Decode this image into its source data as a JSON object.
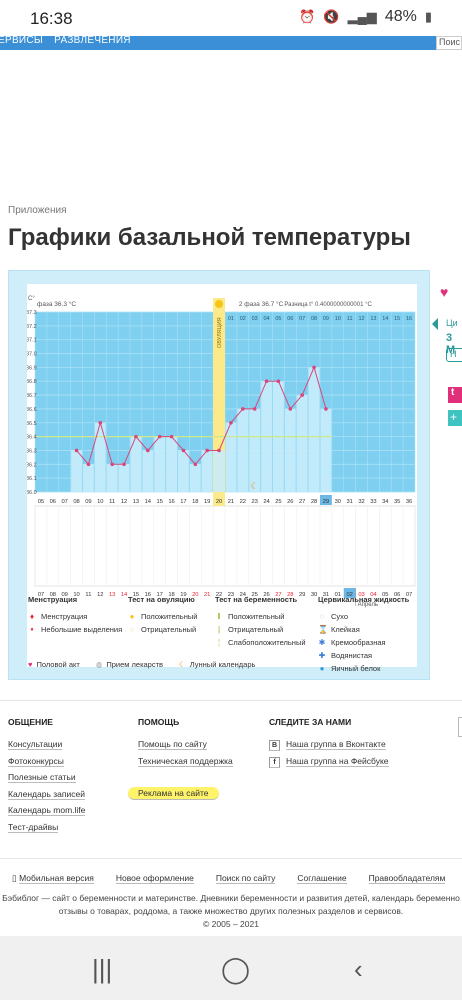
{
  "status": {
    "time": "16:38",
    "battery": "48%"
  },
  "nav": {
    "items": [
      "ЕРВИСЫ",
      "РАЗВЛЕЧЕНИЯ"
    ],
    "search": "Поис"
  },
  "breadcrumb": "Приложения",
  "title": "Графики базальной температуры",
  "chart": {
    "phase1": "фаза 36.3 °C",
    "phase2": "2 фаза 36.7 °C",
    "diff": "Разница t° 0.4000000000001 °C",
    "unit": "C°",
    "ovulation": "ОВУЛЯЦИЯ",
    "month_label": "Апрель"
  },
  "chart_data": {
    "type": "line",
    "y_ticks": [
      "37.3",
      "37.2",
      "37.1",
      "37.0",
      "36.9",
      "36.8",
      "36.7",
      "36.6",
      "36.5",
      "36.4",
      "36.3",
      "36.2",
      "36.1",
      "36.0"
    ],
    "ylim": [
      36.0,
      37.3
    ],
    "cycle_days": [
      "05",
      "06",
      "07",
      "08",
      "09",
      "10",
      "11",
      "12",
      "13",
      "14",
      "15",
      "16",
      "17",
      "18",
      "19",
      "20",
      "21",
      "22",
      "23",
      "24",
      "25",
      "26",
      "27",
      "28",
      "29",
      "30",
      "31",
      "32",
      "33",
      "34",
      "35",
      "36"
    ],
    "top_days": [
      "01",
      "02",
      "03",
      "04",
      "05",
      "06",
      "07",
      "08",
      "09",
      "10",
      "11",
      "12",
      "13",
      "14",
      "15",
      "16"
    ],
    "dates": [
      "07",
      "08",
      "09",
      "10",
      "11",
      "12",
      "13",
      "14",
      "15",
      "16",
      "17",
      "18",
      "19",
      "20",
      "21",
      "22",
      "23",
      "24",
      "25",
      "26",
      "27",
      "28",
      "29",
      "30",
      "31",
      "01",
      "02",
      "03",
      "04",
      "05",
      "06",
      "07"
    ],
    "dates_red": [
      "13",
      "14",
      "20",
      "21",
      "27",
      "28",
      "03",
      "04"
    ],
    "series": [
      {
        "values": [
          null,
          null,
          null,
          36.3,
          36.2,
          36.5,
          36.2,
          36.2,
          36.4,
          36.3,
          36.4,
          36.4,
          36.3,
          36.2,
          36.3,
          36.3,
          36.5,
          36.6,
          36.6,
          36.8,
          36.8,
          36.6,
          36.7,
          36.9,
          36.6,
          null,
          null,
          null,
          null,
          null,
          null,
          null
        ]
      }
    ],
    "coverline": 36.4,
    "ovulation_day": 20,
    "current_day": 29
  },
  "legend": {
    "menstruation": {
      "title": "Менструация",
      "items": [
        "Менструация",
        "Небольшие выделения"
      ]
    },
    "ovulation_test": {
      "title": "Тест на овуляцию",
      "items": [
        "Положительный",
        "Отрицательный"
      ]
    },
    "pregnancy_test": {
      "title": "Тест на беременность",
      "items": [
        "Положительный",
        "Отрицательный",
        "Слабоположительный"
      ]
    },
    "cervical": {
      "title": "Цервикальная жидкость",
      "items": [
        "Сухо",
        "Клейкая",
        "Кремообразная",
        "Водянистая",
        "Яичный белок"
      ]
    },
    "bottom": [
      "Половой акт",
      "Прием лекарств",
      "Лунный календарь"
    ]
  },
  "side": {
    "t1": "Ци",
    "t2": "3 М",
    "b1": "Н",
    "p1": "t",
    "p2": "+"
  },
  "footer": {
    "col1": {
      "title": "ОБЩЕНИЕ",
      "links": [
        "Консультации",
        "Фотоконкурсы",
        "Полезные статьи",
        "Календарь записей",
        "Календарь mom.life",
        "Тест-драйвы"
      ]
    },
    "col2": {
      "title": "ПОМОЩЬ",
      "links": [
        "Помощь по сайту",
        "Техническая поддержка"
      ],
      "ad": "Реклама на сайте"
    },
    "col3": {
      "title": "СЛЕДИТЕ ЗА НАМИ",
      "links": [
        "Наша группа в Вконтакте",
        "Наша группа на Фейсбуке"
      ]
    },
    "bottom_links": [
      "Мобильная версия",
      "Новое оформление",
      "Поиск по сайту",
      "Соглашение",
      "Правообладателям"
    ],
    "about": "Бэбиблог — сайт о беременности и материнстве. Дневники беременности и развития детей, календарь беременно",
    "about2": "отзывы о товарах, роддома, а также множество других полезных разделов и сервисов.",
    "copyright": "© 2005 – 2021"
  }
}
